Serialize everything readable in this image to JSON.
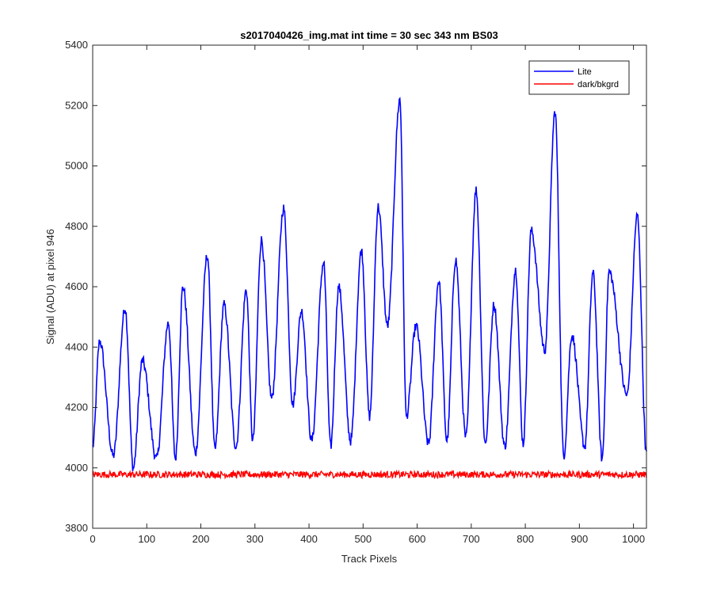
{
  "chart_data": {
    "type": "line",
    "title": "s2017040426_img.mat int time = 30 sec  343 nm BS03",
    "xlabel": "Track Pixels",
    "ylabel": "Signal (ADU) at pixel 946",
    "xlim": [
      0,
      1024
    ],
    "ylim": [
      3800,
      5400
    ],
    "xticks": [
      0,
      100,
      200,
      300,
      400,
      500,
      600,
      700,
      800,
      900,
      1000
    ],
    "yticks": [
      3800,
      4000,
      4200,
      4400,
      4600,
      4800,
      5000,
      5200,
      5400
    ],
    "grid": false,
    "legend": {
      "position": "top-right"
    },
    "series": [
      {
        "name": "Lite",
        "color": "#0000ff",
        "peaks_x": [
          13,
          60,
          92,
          140,
          167,
          212,
          243,
          284,
          312,
          353,
          386,
          427,
          455,
          497,
          528,
          568,
          598,
          640,
          671,
          709,
          742,
          782,
          811,
          855,
          886,
          925,
          955,
          1007
        ],
        "peaks_y": [
          4420,
          4530,
          4355,
          4480,
          4600,
          4705,
          4540,
          4590,
          4755,
          4860,
          4520,
          4680,
          4600,
          4720,
          4865,
          5220,
          4470,
          4620,
          4690,
          4920,
          4540,
          4655,
          4785,
          5180,
          4440,
          4645,
          4650,
          4835
        ],
        "troughs_x": [
          38,
          75,
          118,
          153,
          190,
          226,
          265,
          296,
          331,
          370,
          405,
          440,
          477,
          512,
          545,
          580,
          621,
          655,
          690,
          726,
          762,
          796,
          836,
          871,
          910,
          942,
          988
        ],
        "troughs_y": [
          4040,
          4000,
          4030,
          4030,
          4050,
          4060,
          4070,
          4090,
          4230,
          4210,
          4090,
          4070,
          4090,
          4170,
          4470,
          4170,
          4080,
          4090,
          4100,
          4080,
          4070,
          4080,
          4390,
          4040,
          4070,
          4030,
          4240
        ]
      },
      {
        "name": "dark/bkgrd",
        "color": "#ff0000",
        "mean": 3978,
        "range": [
          3960,
          4000
        ]
      }
    ]
  }
}
